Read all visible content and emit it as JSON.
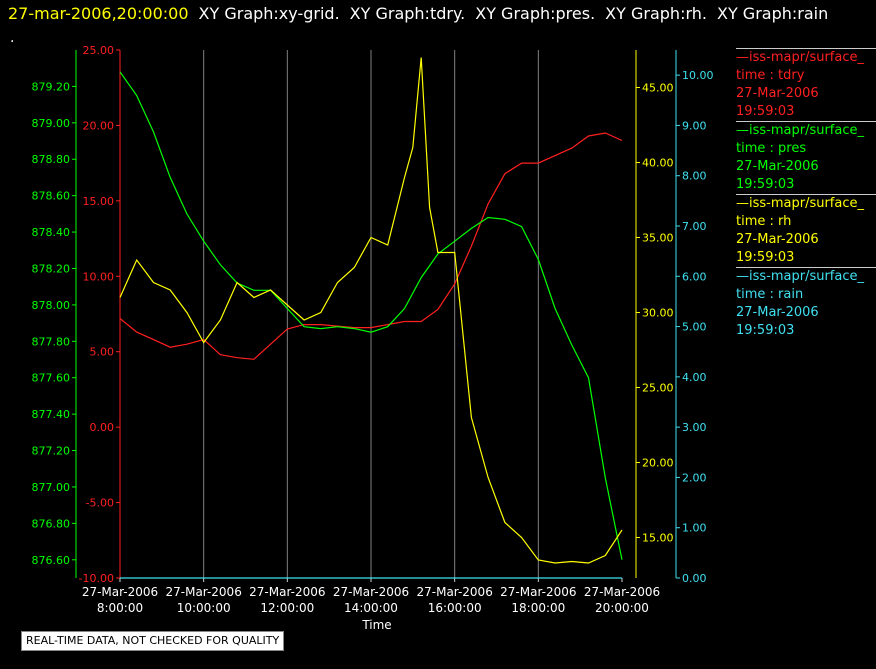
{
  "header": {
    "timestamp": "27-mar-2006,20:00:00",
    "graphs": [
      "XY Graph:xy-grid.",
      "XY Graph:tdry.",
      "XY Graph:pres.",
      "XY Graph:rh.",
      "XY Graph:rain"
    ],
    "dot": "."
  },
  "legend": [
    {
      "line": "—iss-mapr/surface_",
      "label": "time : tdry",
      "date": "27-Mar-2006",
      "time": "19:59:03",
      "color": "#ff2020"
    },
    {
      "line": "—iss-mapr/surface_",
      "label": "time : pres",
      "date": "27-Mar-2006",
      "time": "19:59:03",
      "color": "#00ff00"
    },
    {
      "line": "—iss-mapr/surface_",
      "label": "time : rh",
      "date": "27-Mar-2006",
      "time": "19:59:03",
      "color": "#ffff00"
    },
    {
      "line": "—iss-mapr/surface_",
      "label": "time : rain",
      "date": "27-Mar-2006",
      "time": "19:59:03",
      "color": "#40e0f0"
    }
  ],
  "notice": "REAL-TIME DATA, NOT CHECKED FOR QUALITY",
  "chart_data": {
    "type": "line",
    "xlabel": "Time",
    "x_ticks": [
      {
        "date": "27-Mar-2006",
        "time": "8:00:00",
        "hour": 8
      },
      {
        "date": "27-Mar-2006",
        "time": "10:00:00",
        "hour": 10
      },
      {
        "date": "27-Mar-2006",
        "time": "12:00:00",
        "hour": 12
      },
      {
        "date": "27-Mar-2006",
        "time": "14:00:00",
        "hour": 14
      },
      {
        "date": "27-Mar-2006",
        "time": "16:00:00",
        "hour": 16
      },
      {
        "date": "27-Mar-2006",
        "time": "18:00:00",
        "hour": 18
      },
      {
        "date": "27-Mar-2006",
        "time": "20:00:00",
        "hour": 20
      }
    ],
    "xlim": [
      8,
      20
    ],
    "grid": "vertical",
    "axes": {
      "pres": {
        "color": "#00ff00",
        "ylim": [
          876.5,
          879.4
        ],
        "ticks": [
          "876.60",
          "876.80",
          "877.00",
          "877.20",
          "877.40",
          "877.60",
          "877.80",
          "878.00",
          "878.20",
          "878.40",
          "878.60",
          "878.80",
          "879.00",
          "879.20"
        ]
      },
      "tdry": {
        "color": "#ff2020",
        "ylim": [
          -10,
          25
        ],
        "ticks": [
          "-10.00",
          "-5.00",
          "0.00",
          "5.00",
          "10.00",
          "15.00",
          "20.00",
          "25.00"
        ]
      },
      "rh": {
        "color": "#ffff00",
        "ylim": [
          12.3,
          47.5
        ],
        "ticks": [
          "15.00",
          "20.00",
          "25.00",
          "30.00",
          "35.00",
          "40.00",
          "45.00"
        ]
      },
      "rain": {
        "color": "#40e0f0",
        "ylim": [
          0,
          10.5
        ],
        "ticks": [
          "0.00",
          "1.00",
          "2.00",
          "3.00",
          "4.00",
          "5.00",
          "6.00",
          "7.00",
          "8.00",
          "9.00",
          "10.00"
        ]
      }
    },
    "series": [
      {
        "name": "tdry",
        "axis": "tdry",
        "color": "#ff2020",
        "x": [
          8.0,
          8.4,
          8.8,
          9.2,
          9.6,
          10.0,
          10.4,
          10.8,
          11.2,
          11.6,
          12.0,
          12.4,
          12.8,
          13.2,
          13.6,
          14.0,
          14.4,
          14.8,
          15.2,
          15.6,
          16.0,
          16.4,
          16.8,
          17.2,
          17.6,
          18.0,
          18.4,
          18.8,
          19.2,
          19.6,
          20.0
        ],
        "y": [
          7.2,
          6.3,
          5.8,
          5.3,
          5.5,
          5.8,
          4.8,
          4.6,
          4.5,
          5.5,
          6.5,
          6.8,
          6.8,
          6.7,
          6.6,
          6.6,
          6.8,
          7.0,
          7.0,
          7.8,
          9.5,
          12.0,
          14.8,
          16.8,
          17.5,
          17.5,
          18.0,
          18.5,
          19.3,
          19.5,
          19.0
        ]
      },
      {
        "name": "pres",
        "axis": "pres",
        "color": "#00ff00",
        "x": [
          8.0,
          8.4,
          8.8,
          9.2,
          9.6,
          10.0,
          10.4,
          10.8,
          11.2,
          11.6,
          12.0,
          12.4,
          12.8,
          13.2,
          13.6,
          14.0,
          14.4,
          14.8,
          15.2,
          15.6,
          16.0,
          16.4,
          16.8,
          17.2,
          17.6,
          18.0,
          18.4,
          18.8,
          19.2,
          19.6,
          20.0
        ],
        "y": [
          879.28,
          879.15,
          878.95,
          878.7,
          878.5,
          878.35,
          878.22,
          878.12,
          878.08,
          878.08,
          877.98,
          877.88,
          877.87,
          877.88,
          877.87,
          877.85,
          877.88,
          877.98,
          878.15,
          878.28,
          878.35,
          878.42,
          878.48,
          878.47,
          878.43,
          878.25,
          877.98,
          877.78,
          877.6,
          877.05,
          876.6
        ]
      },
      {
        "name": "rh",
        "axis": "rh",
        "color": "#ffff00",
        "x": [
          8.0,
          8.4,
          8.8,
          9.2,
          9.6,
          10.0,
          10.4,
          10.8,
          11.2,
          11.6,
          12.0,
          12.4,
          12.8,
          13.2,
          13.6,
          14.0,
          14.4,
          14.8,
          15.0,
          15.2,
          15.4,
          15.6,
          16.0,
          16.4,
          16.8,
          17.2,
          17.6,
          18.0,
          18.4,
          18.8,
          19.2,
          19.6,
          20.0
        ],
        "y": [
          31.0,
          33.5,
          32.0,
          31.5,
          30.0,
          28.0,
          29.5,
          32.0,
          31.0,
          31.5,
          30.5,
          29.5,
          30.0,
          32.0,
          33.0,
          35.0,
          34.5,
          39.0,
          41.0,
          47.0,
          37.0,
          34.0,
          34.0,
          23.0,
          19.0,
          16.0,
          15.0,
          13.5,
          13.3,
          13.4,
          13.3,
          13.8,
          15.5
        ]
      },
      {
        "name": "rain",
        "axis": "rain",
        "color": "#40e0f0",
        "x": [
          8.0,
          20.0
        ],
        "y": [
          0.0,
          0.0
        ]
      }
    ]
  }
}
